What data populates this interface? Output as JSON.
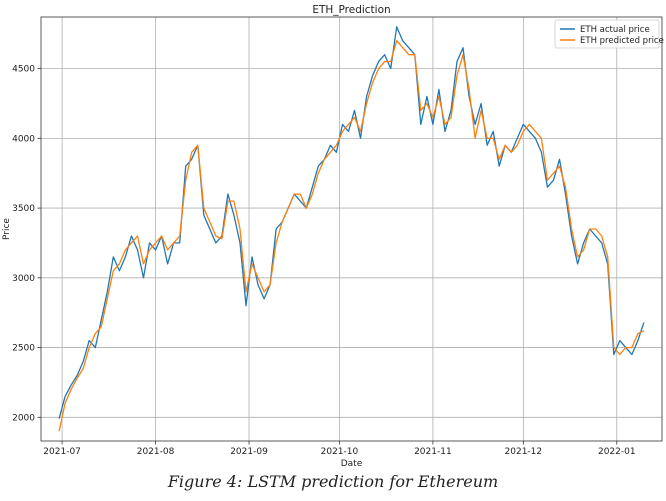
{
  "chart_data": {
    "type": "line",
    "title": "ETH_Prediction",
    "xlabel": "Date",
    "ylabel": "Price",
    "x_ticks": [
      "2021-07",
      "2021-08",
      "2021-09",
      "2021-10",
      "2021-11",
      "2021-12",
      "2022-01"
    ],
    "y_ticks": [
      2000,
      2500,
      3000,
      3500,
      4000,
      4500
    ],
    "xlim": [
      "2021-06-24",
      "2022-01-16"
    ],
    "ylim": [
      1830,
      4870
    ],
    "grid": true,
    "legend_position": "top-right",
    "series": [
      {
        "name": "ETH actual price",
        "color": "#1f77b4",
        "x": [
          "2021-06-30",
          "2021-07-02",
          "2021-07-04",
          "2021-07-06",
          "2021-07-08",
          "2021-07-10",
          "2021-07-12",
          "2021-07-14",
          "2021-07-16",
          "2021-07-18",
          "2021-07-20",
          "2021-07-22",
          "2021-07-24",
          "2021-07-26",
          "2021-07-28",
          "2021-07-30",
          "2021-08-01",
          "2021-08-03",
          "2021-08-05",
          "2021-08-07",
          "2021-08-09",
          "2021-08-11",
          "2021-08-13",
          "2021-08-15",
          "2021-08-17",
          "2021-08-19",
          "2021-08-21",
          "2021-08-23",
          "2021-08-25",
          "2021-08-27",
          "2021-08-29",
          "2021-08-31",
          "2021-09-02",
          "2021-09-04",
          "2021-09-06",
          "2021-09-08",
          "2021-09-10",
          "2021-09-12",
          "2021-09-14",
          "2021-09-16",
          "2021-09-18",
          "2021-09-20",
          "2021-09-22",
          "2021-09-24",
          "2021-09-26",
          "2021-09-28",
          "2021-09-30",
          "2021-10-02",
          "2021-10-04",
          "2021-10-06",
          "2021-10-08",
          "2021-10-10",
          "2021-10-12",
          "2021-10-14",
          "2021-10-16",
          "2021-10-18",
          "2021-10-20",
          "2021-10-22",
          "2021-10-24",
          "2021-10-26",
          "2021-10-28",
          "2021-10-30",
          "2021-11-01",
          "2021-11-03",
          "2021-11-05",
          "2021-11-07",
          "2021-11-09",
          "2021-11-11",
          "2021-11-13",
          "2021-11-15",
          "2021-11-17",
          "2021-11-19",
          "2021-11-21",
          "2021-11-23",
          "2021-11-25",
          "2021-11-27",
          "2021-11-29",
          "2021-12-01",
          "2021-12-03",
          "2021-12-05",
          "2021-12-07",
          "2021-12-09",
          "2021-12-11",
          "2021-12-13",
          "2021-12-15",
          "2021-12-17",
          "2021-12-19",
          "2021-12-21",
          "2021-12-23",
          "2021-12-25",
          "2021-12-27",
          "2021-12-29",
          "2021-12-31",
          "2022-01-02",
          "2022-01-04",
          "2022-01-06",
          "2022-01-08",
          "2022-01-10"
        ],
        "y": [
          1990,
          2150,
          2230,
          2300,
          2400,
          2550,
          2500,
          2700,
          2900,
          3150,
          3050,
          3150,
          3300,
          3200,
          3000,
          3250,
          3200,
          3300,
          3100,
          3250,
          3250,
          3800,
          3850,
          3950,
          3450,
          3350,
          3250,
          3300,
          3600,
          3450,
          3250,
          2800,
          3150,
          2950,
          2850,
          2950,
          3350,
          3400,
          3500,
          3600,
          3550,
          3500,
          3650,
          3800,
          3850,
          3950,
          3900,
          4100,
          4050,
          4200,
          4000,
          4300,
          4450,
          4550,
          4600,
          4500,
          4800,
          4700,
          4650,
          4600,
          4100,
          4300,
          4100,
          4350,
          4050,
          4200,
          4550,
          4650,
          4300,
          4100,
          4250,
          3950,
          4050,
          3800,
          3950,
          3900,
          4000,
          4100,
          4050,
          4000,
          3900,
          3650,
          3700,
          3850,
          3600,
          3300,
          3100,
          3250,
          3350,
          3300,
          3250,
          3100,
          2450,
          2550,
          2500,
          2450,
          2550,
          2680
        ]
      },
      {
        "name": "ETH predicted price",
        "color": "#ff7f0e",
        "x": [
          "2021-06-30",
          "2021-07-02",
          "2021-07-04",
          "2021-07-06",
          "2021-07-08",
          "2021-07-10",
          "2021-07-12",
          "2021-07-14",
          "2021-07-16",
          "2021-07-18",
          "2021-07-20",
          "2021-07-22",
          "2021-07-24",
          "2021-07-26",
          "2021-07-28",
          "2021-07-30",
          "2021-08-01",
          "2021-08-03",
          "2021-08-05",
          "2021-08-07",
          "2021-08-09",
          "2021-08-11",
          "2021-08-13",
          "2021-08-15",
          "2021-08-17",
          "2021-08-19",
          "2021-08-21",
          "2021-08-23",
          "2021-08-25",
          "2021-08-27",
          "2021-08-29",
          "2021-08-31",
          "2021-09-02",
          "2021-09-04",
          "2021-09-06",
          "2021-09-08",
          "2021-09-10",
          "2021-09-12",
          "2021-09-14",
          "2021-09-16",
          "2021-09-18",
          "2021-09-20",
          "2021-09-22",
          "2021-09-24",
          "2021-09-26",
          "2021-09-28",
          "2021-09-30",
          "2021-10-02",
          "2021-10-04",
          "2021-10-06",
          "2021-10-08",
          "2021-10-10",
          "2021-10-12",
          "2021-10-14",
          "2021-10-16",
          "2021-10-18",
          "2021-10-20",
          "2021-10-22",
          "2021-10-24",
          "2021-10-26",
          "2021-10-28",
          "2021-10-30",
          "2021-11-01",
          "2021-11-03",
          "2021-11-05",
          "2021-11-07",
          "2021-11-09",
          "2021-11-11",
          "2021-11-13",
          "2021-11-15",
          "2021-11-17",
          "2021-11-19",
          "2021-11-21",
          "2021-11-23",
          "2021-11-25",
          "2021-11-27",
          "2021-11-29",
          "2021-12-01",
          "2021-12-03",
          "2021-12-05",
          "2021-12-07",
          "2021-12-09",
          "2021-12-11",
          "2021-12-13",
          "2021-12-15",
          "2021-12-17",
          "2021-12-19",
          "2021-12-21",
          "2021-12-23",
          "2021-12-25",
          "2021-12-27",
          "2021-12-29",
          "2021-12-31",
          "2022-01-02",
          "2022-01-04",
          "2022-01-06",
          "2022-01-08",
          "2022-01-10"
        ],
        "y": [
          1900,
          2100,
          2200,
          2280,
          2350,
          2500,
          2600,
          2650,
          2850,
          3050,
          3100,
          3200,
          3250,
          3300,
          3100,
          3200,
          3250,
          3300,
          3200,
          3250,
          3300,
          3700,
          3900,
          3950,
          3500,
          3400,
          3300,
          3280,
          3550,
          3550,
          3350,
          2900,
          3100,
          3000,
          2900,
          2950,
          3250,
          3400,
          3500,
          3600,
          3600,
          3500,
          3600,
          3750,
          3850,
          3900,
          3950,
          4050,
          4100,
          4150,
          4050,
          4250,
          4400,
          4500,
          4550,
          4550,
          4700,
          4650,
          4600,
          4600,
          4200,
          4250,
          4150,
          4300,
          4100,
          4150,
          4450,
          4600,
          4350,
          4000,
          4200,
          4000,
          4000,
          3850,
          3950,
          3900,
          3950,
          4050,
          4100,
          4050,
          4000,
          3700,
          3750,
          3800,
          3650,
          3350,
          3150,
          3200,
          3350,
          3350,
          3300,
          3150,
          2500,
          2450,
          2500,
          2500,
          2600,
          2620
        ]
      }
    ]
  },
  "caption": "Figure 4: LSTM prediction for Ethereum"
}
